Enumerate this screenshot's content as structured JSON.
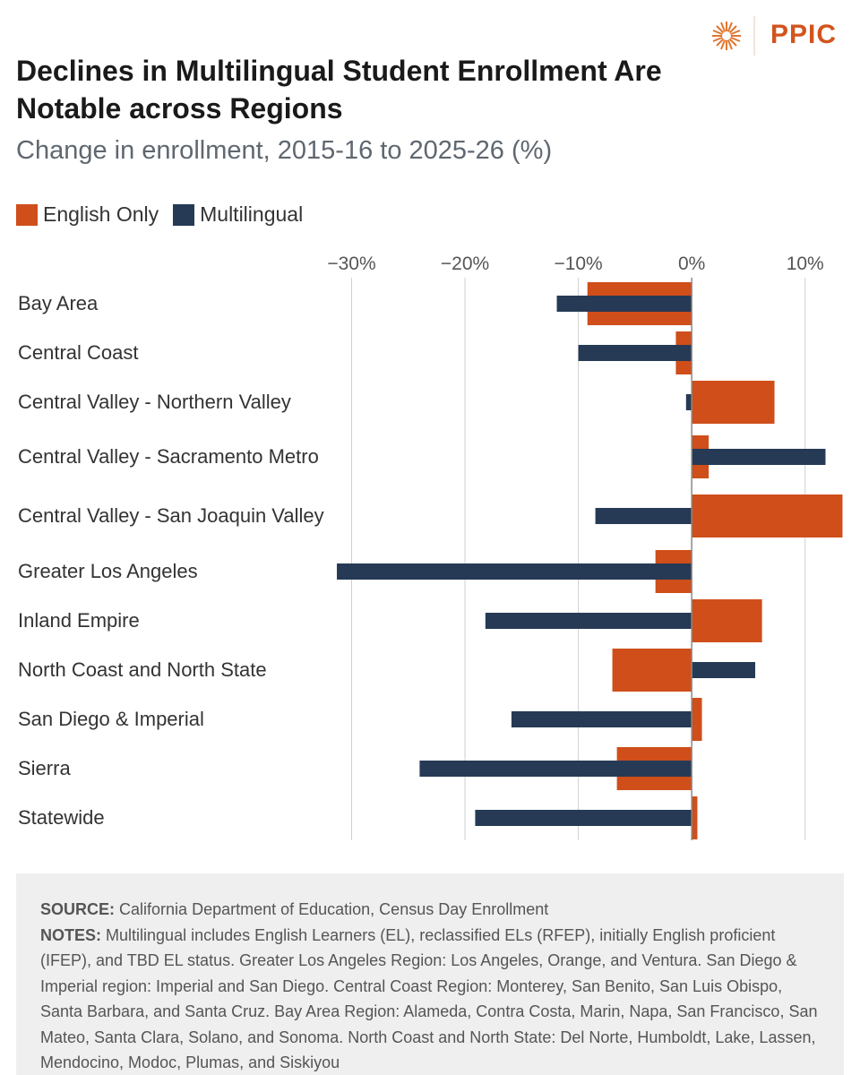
{
  "logo_text": "PPIC",
  "chart_data": {
    "type": "bar",
    "orientation": "horizontal",
    "title": "Declines in Multilingual Student Enrollment Are Notable across Regions",
    "subtitle": "Change in enrollment, 2015-16 to 2025-26 (%)",
    "categories": [
      "Bay Area",
      "Central Coast",
      "Central Valley - Northern Valley",
      "Central Valley - Sacramento Metro",
      "Central Valley - San Joaquin Valley",
      "Greater Los Angeles",
      "Inland Empire",
      "North Coast and North State",
      "San Diego & Imperial",
      "Sierra",
      "Statewide"
    ],
    "series": [
      {
        "name": "English Only",
        "color": "#cf4e1a",
        "values": [
          -9.2,
          -1.4,
          7.3,
          1.5,
          13.3,
          -3.2,
          6.2,
          -7.0,
          0.9,
          -6.6,
          0.5
        ]
      },
      {
        "name": "Multilingual",
        "color": "#263a55",
        "values": [
          -11.9,
          -10.0,
          -0.5,
          11.8,
          -8.5,
          -31.3,
          -18.2,
          5.6,
          -15.9,
          -24.0,
          -19.1
        ]
      }
    ],
    "xlim": [
      -31.5,
      13.5
    ],
    "xticks": [
      {
        "value": -30,
        "label": "−30%"
      },
      {
        "value": -20,
        "label": "−20%"
      },
      {
        "value": -10,
        "label": "−10%"
      },
      {
        "value": 0,
        "label": "0%"
      },
      {
        "value": 10,
        "label": "10%"
      }
    ],
    "grid": true,
    "legend": "top-left"
  },
  "footer": {
    "source_label": "SOURCE:",
    "source": "California Department of Education, Census Day Enrollment",
    "notes_label": "NOTES:",
    "notes": "Multilingual includes English Learners (EL), reclassified ELs (RFEP), initially English proficient (IFEP), and TBD EL status. Greater Los Angeles Region: Los Angeles, Orange, and Ventura. San Diego & Imperial region: Imperial and San Diego. Central Coast Region: Monterey, San Benito, San Luis Obispo, Santa Barbara, and Santa Cruz. Bay Area Region: Alameda, Contra Costa, Marin, Napa, San Francisco, San Mateo, Santa Clara, Solano, and Sonoma. North Coast and North State: Del Norte, Humboldt, Lake, Lassen, Mendocino, Modoc, Plumas, and Siskiyou"
  }
}
